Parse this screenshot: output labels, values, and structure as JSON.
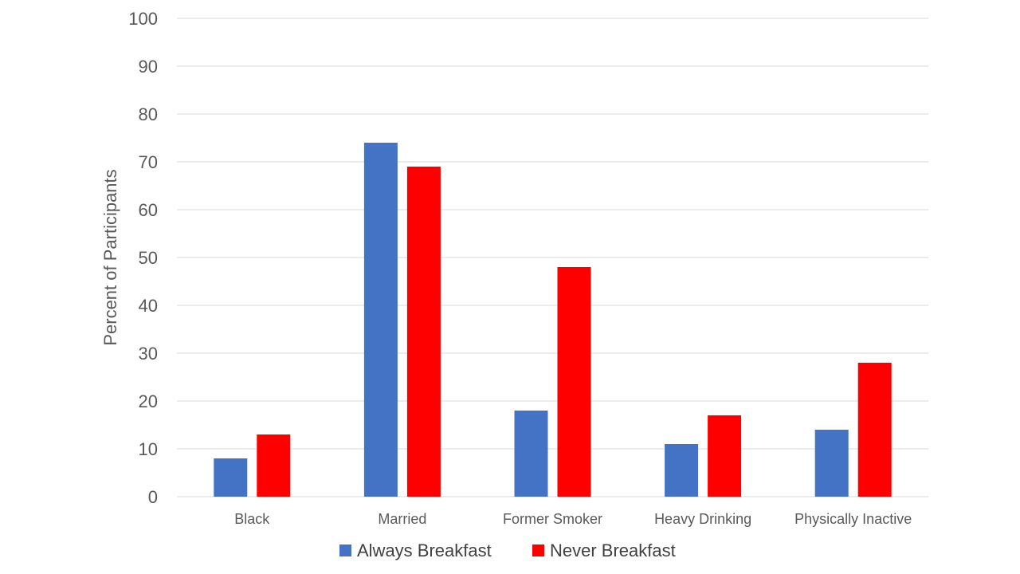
{
  "chart_data": {
    "type": "bar",
    "title": "",
    "xlabel": "",
    "ylabel": "Percent of Participants",
    "ylim": [
      0,
      100
    ],
    "yticks": [
      0,
      10,
      20,
      30,
      40,
      50,
      60,
      70,
      80,
      90,
      100
    ],
    "categories": [
      "Black",
      "Married",
      "Former Smoker",
      "Heavy Drinking",
      "Physically Inactive"
    ],
    "series": [
      {
        "name": "Always Breakfast",
        "color": "#4472C4",
        "values": [
          8,
          74,
          18,
          11,
          14
        ]
      },
      {
        "name": "Never Breakfast",
        "color": "#FF0000",
        "values": [
          13,
          69,
          48,
          17,
          28
        ]
      }
    ],
    "grid": true,
    "legend_position": "bottom"
  }
}
